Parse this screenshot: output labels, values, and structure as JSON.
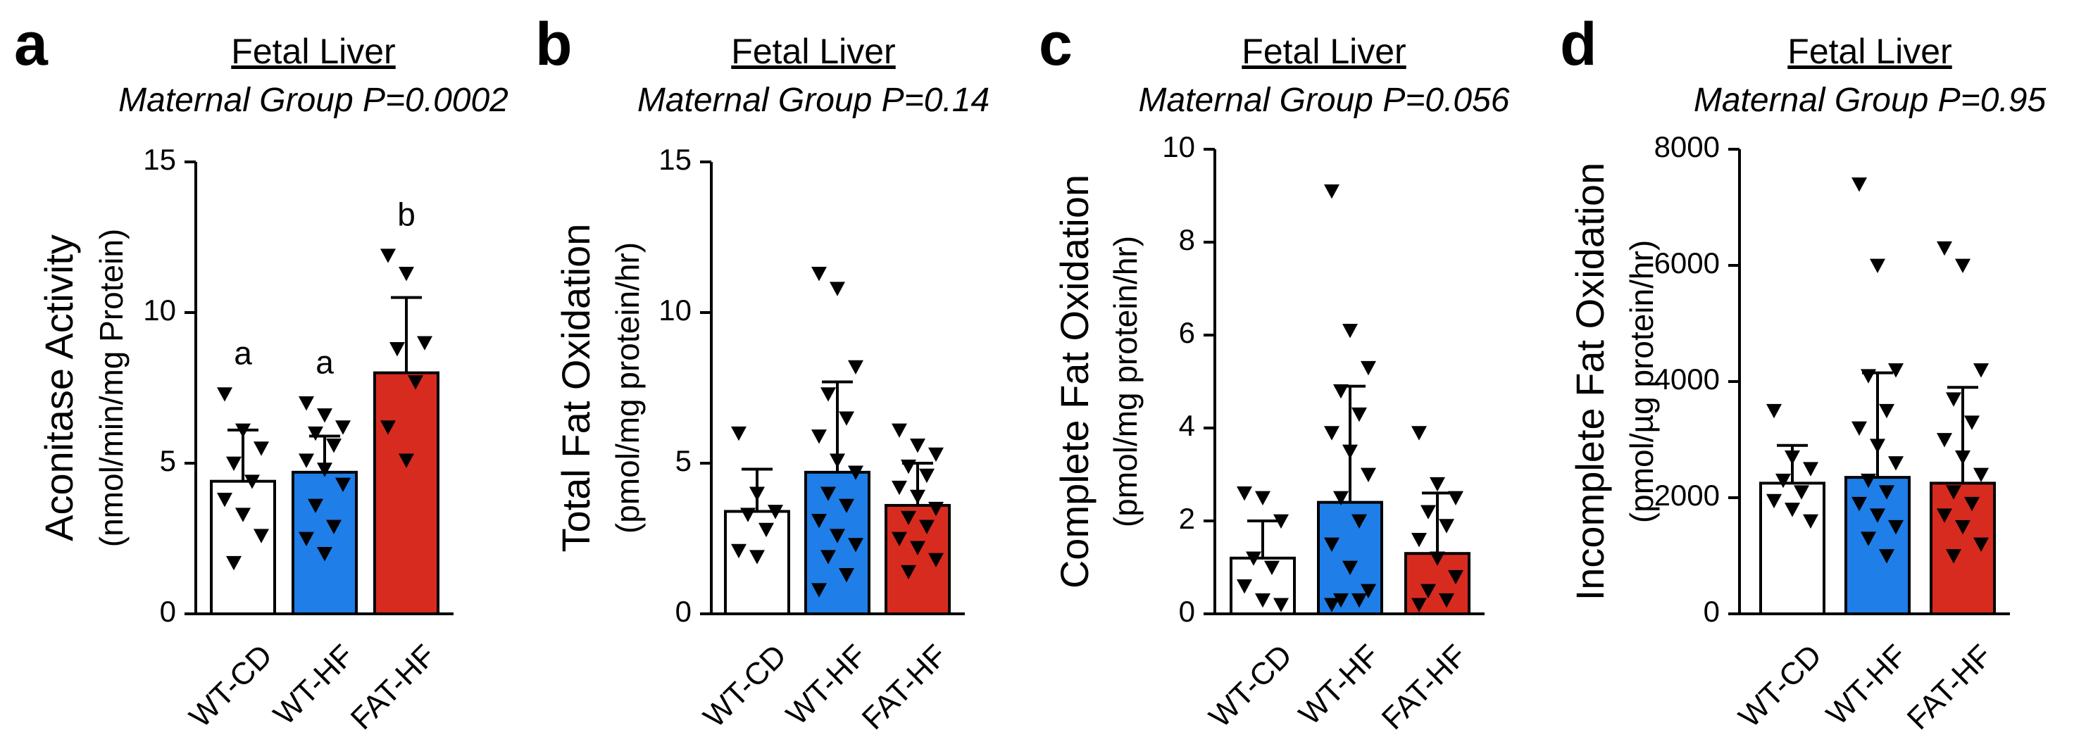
{
  "colors": {
    "WT-CD": "#ffffff",
    "WT-HF": "#1f7ee8",
    "FAT-HF": "#d82b1f",
    "ink": "#000000"
  },
  "chart_data": [
    {
      "type": "bar",
      "panel": "a",
      "title": "Fetal Liver",
      "subtitle": "Maternal Group P=0.0002",
      "ylabel_line1": "Aconitase Activity",
      "ylabel_line2": "(nmol/min/mg Protein)",
      "ylim": [
        0,
        15
      ],
      "yticks": [
        0,
        5,
        10,
        15
      ],
      "categories": [
        "WT-CD",
        "WT-HF",
        "FAT-HF"
      ],
      "values": [
        4.4,
        4.7,
        8.0
      ],
      "errors": [
        1.7,
        1.2,
        2.5
      ],
      "significance_letters": [
        "a",
        "a",
        "b"
      ],
      "points": [
        [
          7.3,
          6.1,
          5.5,
          5.0,
          4.4,
          3.8,
          3.3,
          2.6,
          1.7
        ],
        [
          7.0,
          6.6,
          6.2,
          6.0,
          5.6,
          5.1,
          4.8,
          4.3,
          3.6,
          2.9,
          2.5,
          2.0
        ],
        [
          11.9,
          11.3,
          9.0,
          8.8,
          7.7,
          6.2,
          5.1
        ]
      ]
    },
    {
      "type": "bar",
      "panel": "b",
      "title": "Fetal Liver",
      "subtitle": "Maternal Group P=0.14",
      "ylabel_line1": "Total Fat Oxidation",
      "ylabel_line2": "(pmol/mg protein/hr)",
      "ylim": [
        0,
        15
      ],
      "yticks": [
        0,
        5,
        10,
        15
      ],
      "categories": [
        "WT-CD",
        "WT-HF",
        "FAT-HF"
      ],
      "values": [
        3.4,
        4.7,
        3.6
      ],
      "errors": [
        1.4,
        3.0,
        1.4
      ],
      "points": [
        [
          6.0,
          4.0,
          3.4,
          3.3,
          2.8,
          2.1,
          1.9
        ],
        [
          11.3,
          10.8,
          8.2,
          7.3,
          6.5,
          5.9,
          5.1,
          4.7,
          4.0,
          3.6,
          3.1,
          2.6,
          2.3,
          1.9,
          1.3,
          0.8
        ],
        [
          6.1,
          5.6,
          5.3,
          4.9,
          4.6,
          4.2,
          3.9,
          3.5,
          3.2,
          2.9,
          2.5,
          2.2,
          1.8,
          1.4
        ]
      ]
    },
    {
      "type": "bar",
      "panel": "c",
      "title": "Fetal Liver",
      "subtitle": "Maternal Group P=0.056",
      "ylabel_line1": "Complete Fat Oxidation",
      "ylabel_line2": "(pmol/mg protein/hr)",
      "ylim": [
        0,
        10
      ],
      "yticks": [
        0,
        2,
        4,
        6,
        8,
        10
      ],
      "categories": [
        "WT-CD",
        "WT-HF",
        "FAT-HF"
      ],
      "values": [
        1.2,
        2.4,
        1.3
      ],
      "errors": [
        0.8,
        2.5,
        1.3
      ],
      "points": [
        [
          2.6,
          2.5,
          2.0,
          1.2,
          1.0,
          0.6,
          0.3,
          0.2
        ],
        [
          9.1,
          6.1,
          5.3,
          4.8,
          4.3,
          3.9,
          3.5,
          3.0,
          2.5,
          2.0,
          1.5,
          1.0,
          0.5,
          0.3,
          0.3,
          0.2
        ],
        [
          3.9,
          2.8,
          2.5,
          2.2,
          1.9,
          1.6,
          1.2,
          0.8,
          0.5,
          0.3,
          0.2
        ]
      ]
    },
    {
      "type": "bar",
      "panel": "d",
      "title": "Fetal Liver",
      "subtitle": "Maternal Group P=0.95",
      "ylabel_line1": "Incomplete Fat Oxidation",
      "ylabel_line2": "(pmol/µg protein/hr)",
      "ylim": [
        0,
        8000
      ],
      "yticks": [
        0,
        2000,
        4000,
        6000,
        8000
      ],
      "categories": [
        "WT-CD",
        "WT-HF",
        "FAT-HF"
      ],
      "values": [
        2250,
        2350,
        2250
      ],
      "errors": [
        650,
        1800,
        1650
      ],
      "points": [
        [
          3500,
          2700,
          2500,
          2300,
          2100,
          1950,
          1800,
          1600
        ],
        [
          7400,
          6000,
          4200,
          4100,
          3500,
          3200,
          2900,
          2600,
          2300,
          2100,
          1900,
          1700,
          1500,
          1300,
          1000
        ],
        [
          6300,
          6000,
          4200,
          3700,
          3300,
          3000,
          2700,
          2400,
          2100,
          1900,
          1700,
          1500,
          1200,
          1000
        ]
      ]
    }
  ]
}
